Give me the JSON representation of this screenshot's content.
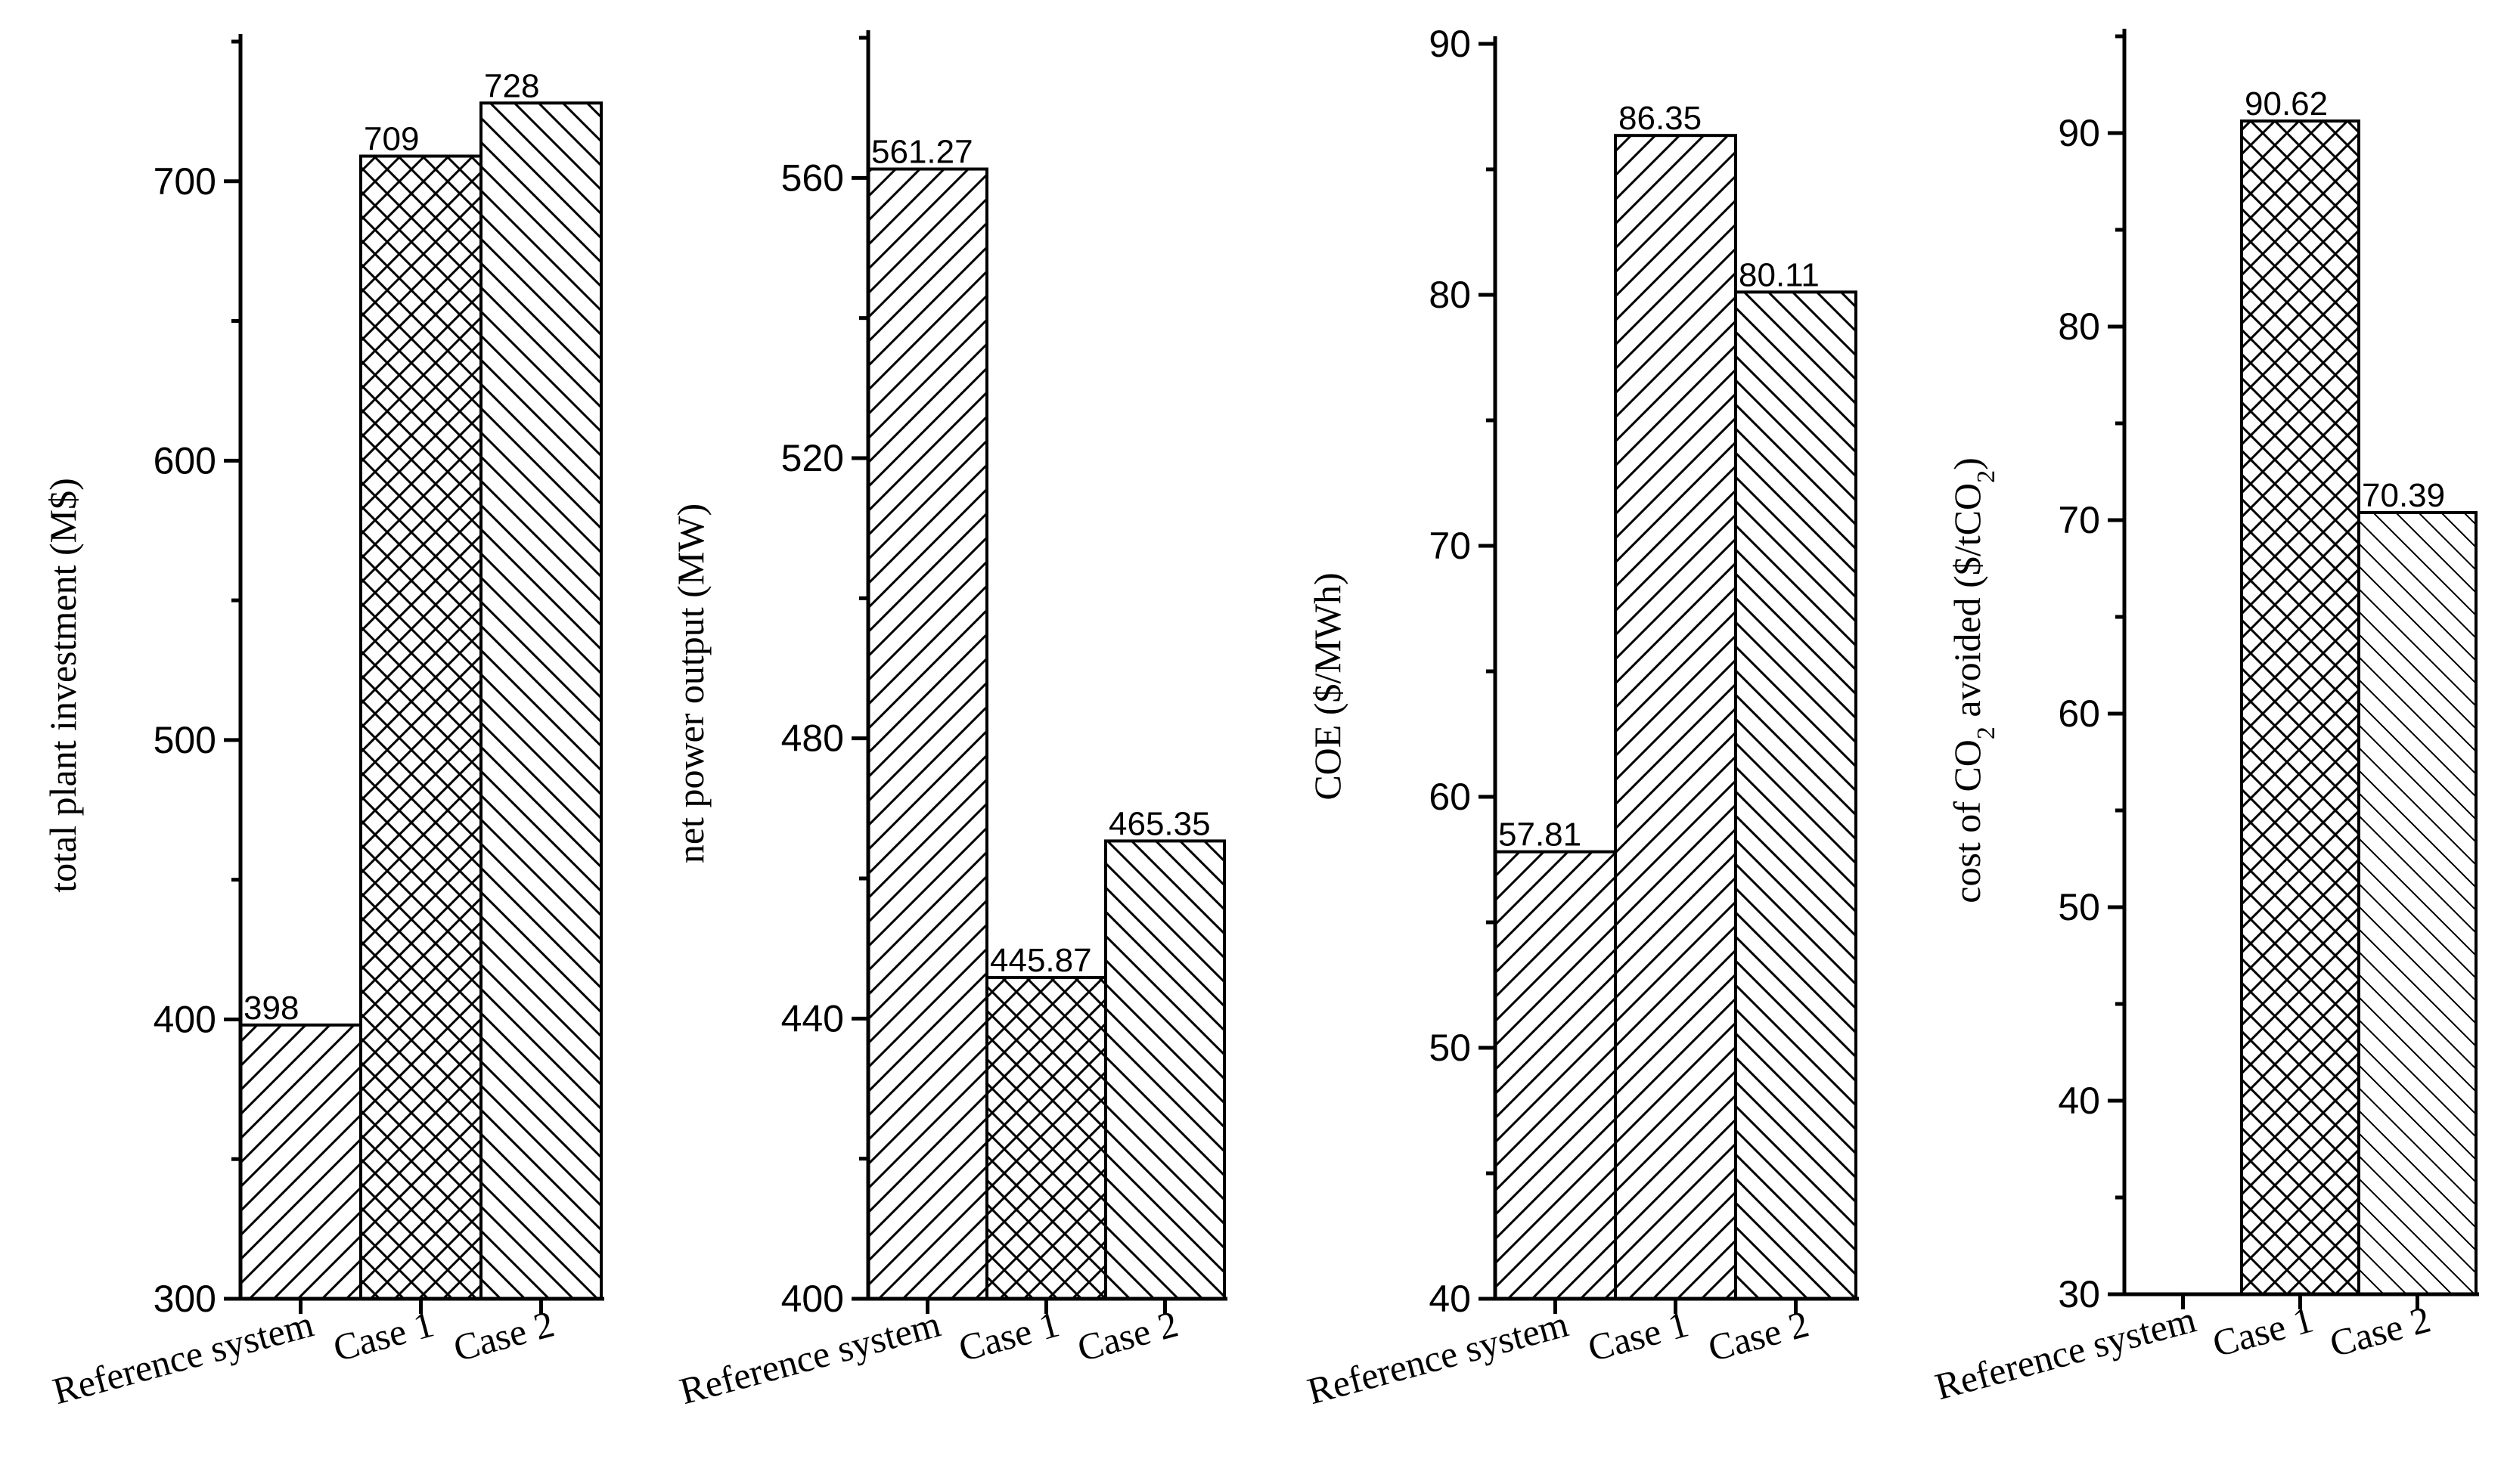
{
  "chart_data": [
    {
      "type": "bar",
      "categories": [
        "Reference system",
        "Case 1",
        "Case 2"
      ],
      "values": [
        398,
        709,
        728
      ],
      "data_labels": [
        "398",
        "709",
        "728"
      ],
      "ylabel": "total plant investment (M$)",
      "ylim": [
        300,
        750
      ],
      "yticks": [
        300,
        400,
        500,
        600,
        700
      ],
      "patterns": [
        "diag-up",
        "crosshatch",
        "diag-down"
      ],
      "grid": false
    },
    {
      "type": "bar",
      "categories": [
        "Reference system",
        "Case 1",
        "Case 2"
      ],
      "values": [
        561.27,
        445.87,
        465.35
      ],
      "data_labels": [
        "561.27",
        "445.87",
        "465.35"
      ],
      "ylabel": "net power output (MW)",
      "ylim": [
        400,
        580
      ],
      "yticks": [
        400,
        440,
        480,
        520,
        560
      ],
      "patterns": [
        "diag-up",
        "crosshatch",
        "diag-down"
      ],
      "grid": false
    },
    {
      "type": "bar",
      "categories": [
        "Reference system",
        "Case 1",
        "Case 2"
      ],
      "values": [
        57.81,
        86.35,
        80.11
      ],
      "data_labels": [
        "57.81",
        "86.35",
        "80.11"
      ],
      "ylabel": "COE ($/MWh)",
      "ylim": [
        40,
        90
      ],
      "yticks": [
        40,
        50,
        60,
        70,
        80,
        90
      ],
      "patterns": [
        "diag-up",
        "diag-up",
        "diag-down"
      ],
      "grid": false
    },
    {
      "type": "bar",
      "categories": [
        "Reference system",
        "Case 1",
        "Case 2"
      ],
      "values": [
        null,
        90.62,
        70.39
      ],
      "data_labels": [
        "",
        "90.62",
        "70.39"
      ],
      "ylabel": "cost of CO2 avoided ($/tCO2)",
      "ylabel_parts": [
        "cost of CO",
        "2",
        " avoided ($/tCO",
        "2",
        ")"
      ],
      "ylim": [
        30,
        95
      ],
      "yticks": [
        30,
        40,
        50,
        60,
        70,
        80,
        90
      ],
      "patterns": [
        "none",
        "crosshatch",
        "diag-down-light"
      ],
      "grid": false
    }
  ]
}
